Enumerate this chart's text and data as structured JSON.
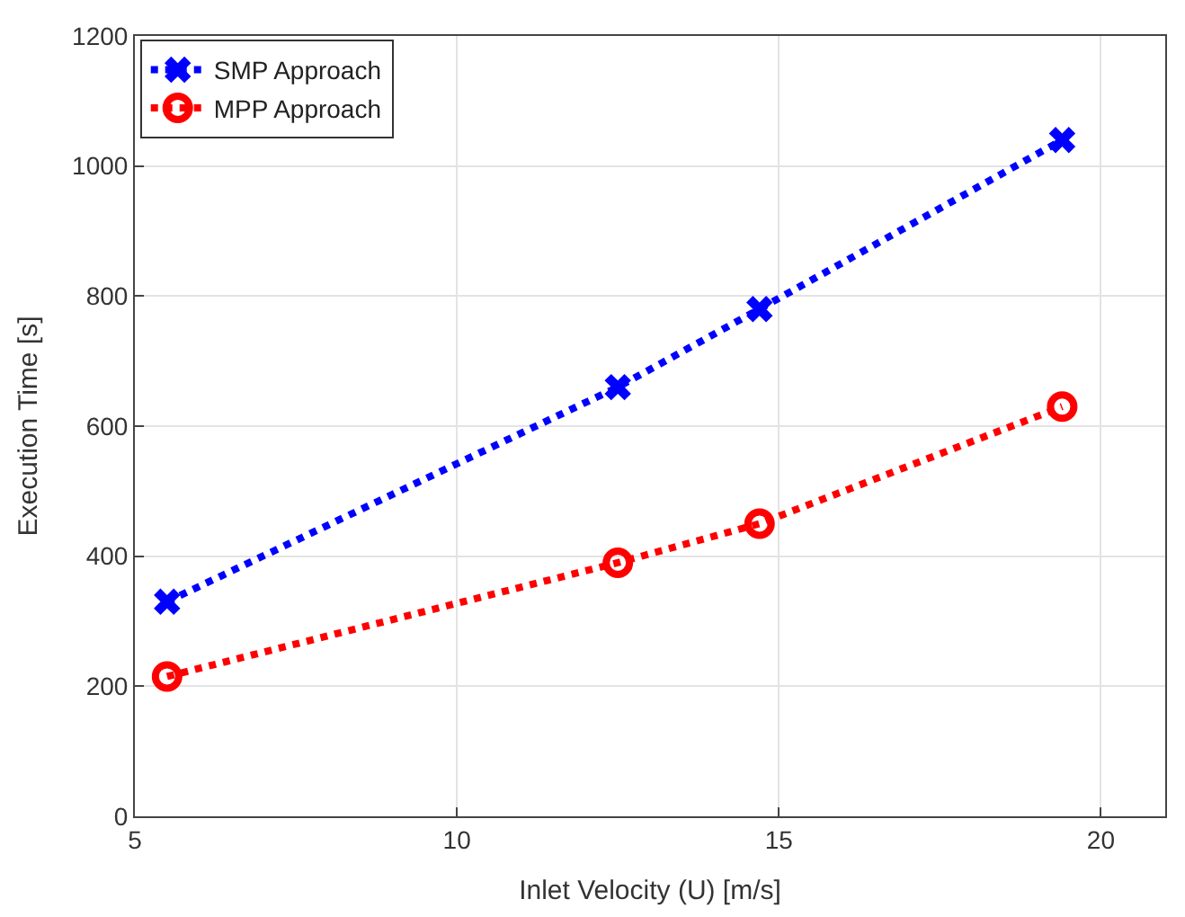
{
  "chart_data": {
    "type": "line",
    "xlabel": "Inlet Velocity (U) [m/s]",
    "ylabel": "Execution Time [s]",
    "x": [
      5.5,
      12.5,
      14.7,
      19.4
    ],
    "series": [
      {
        "name": "SMP Approach",
        "color": "#0000ff",
        "values": [
          330,
          660,
          780,
          1040
        ],
        "marker": "cross"
      },
      {
        "name": "MPP Approach",
        "color": "#ff0000",
        "values": [
          215,
          390,
          450,
          630
        ],
        "marker": "circle"
      }
    ],
    "xlim": [
      5,
      21
    ],
    "xticks": [
      5,
      10,
      15,
      20
    ],
    "ylim": [
      0,
      1200
    ],
    "yticks": [
      0,
      200,
      400,
      600,
      800,
      1000,
      1200
    ],
    "grid": true,
    "legend": "top left",
    "line_style": "dotted"
  }
}
